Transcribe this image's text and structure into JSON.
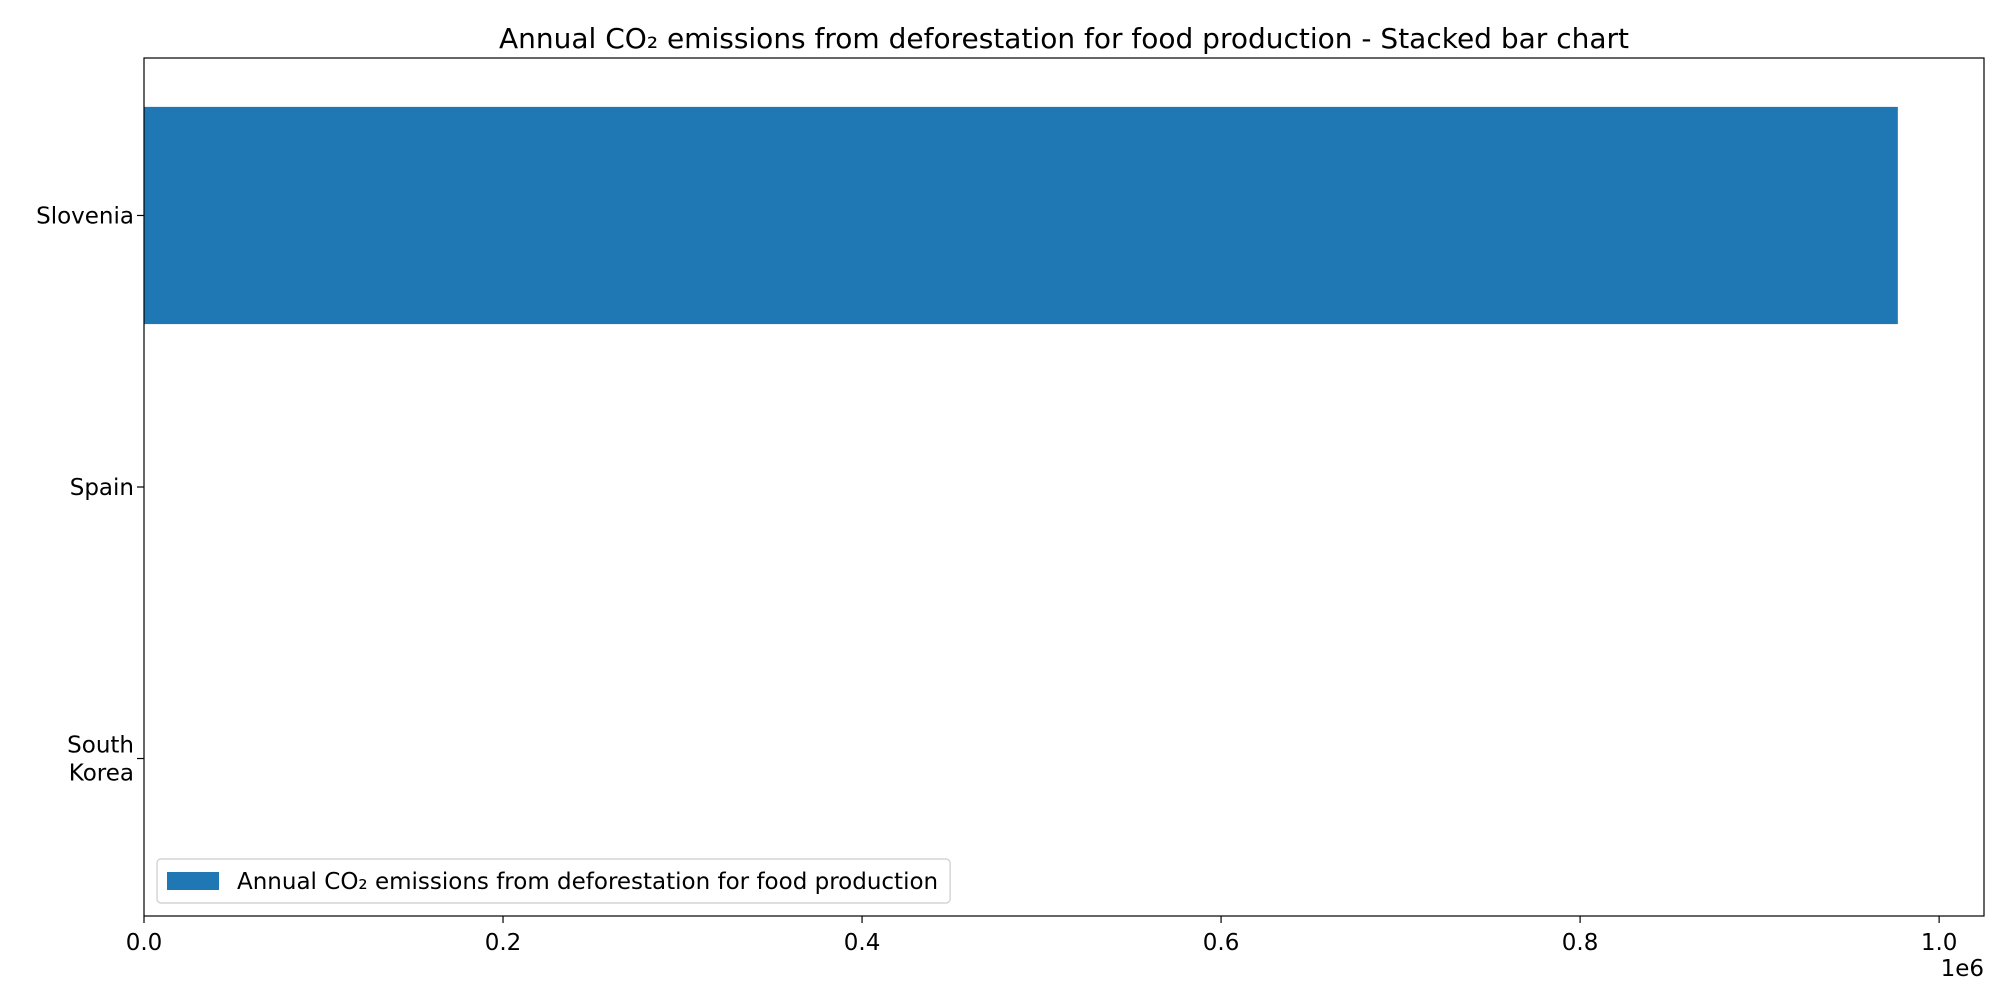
{
  "chart_data": {
    "type": "bar",
    "orientation": "horizontal",
    "stacked": true,
    "title": "Annual CO₂ emissions from deforestation for food production - Stacked bar chart",
    "xlabel": "",
    "ylabel": "",
    "categories": [
      "Slovenia",
      "Spain",
      "South Korea"
    ],
    "category_lines": [
      [
        "Slovenia"
      ],
      [
        "Spain"
      ],
      [
        "South",
        "Korea"
      ]
    ],
    "series": [
      {
        "name": "Annual CO₂ emissions from deforestation for food production",
        "values": [
          977000,
          0,
          0
        ],
        "color": "#1f77b4"
      }
    ],
    "xlim": [
      0,
      1025000
    ],
    "x_ticks": [
      0,
      200000,
      400000,
      600000,
      800000,
      1000000
    ],
    "x_tick_labels": [
      "0.0",
      "0.2",
      "0.4",
      "0.6",
      "0.8",
      "1.0"
    ],
    "x_offset_label": "1e6",
    "grid": false,
    "legend_position": "lower-left"
  }
}
